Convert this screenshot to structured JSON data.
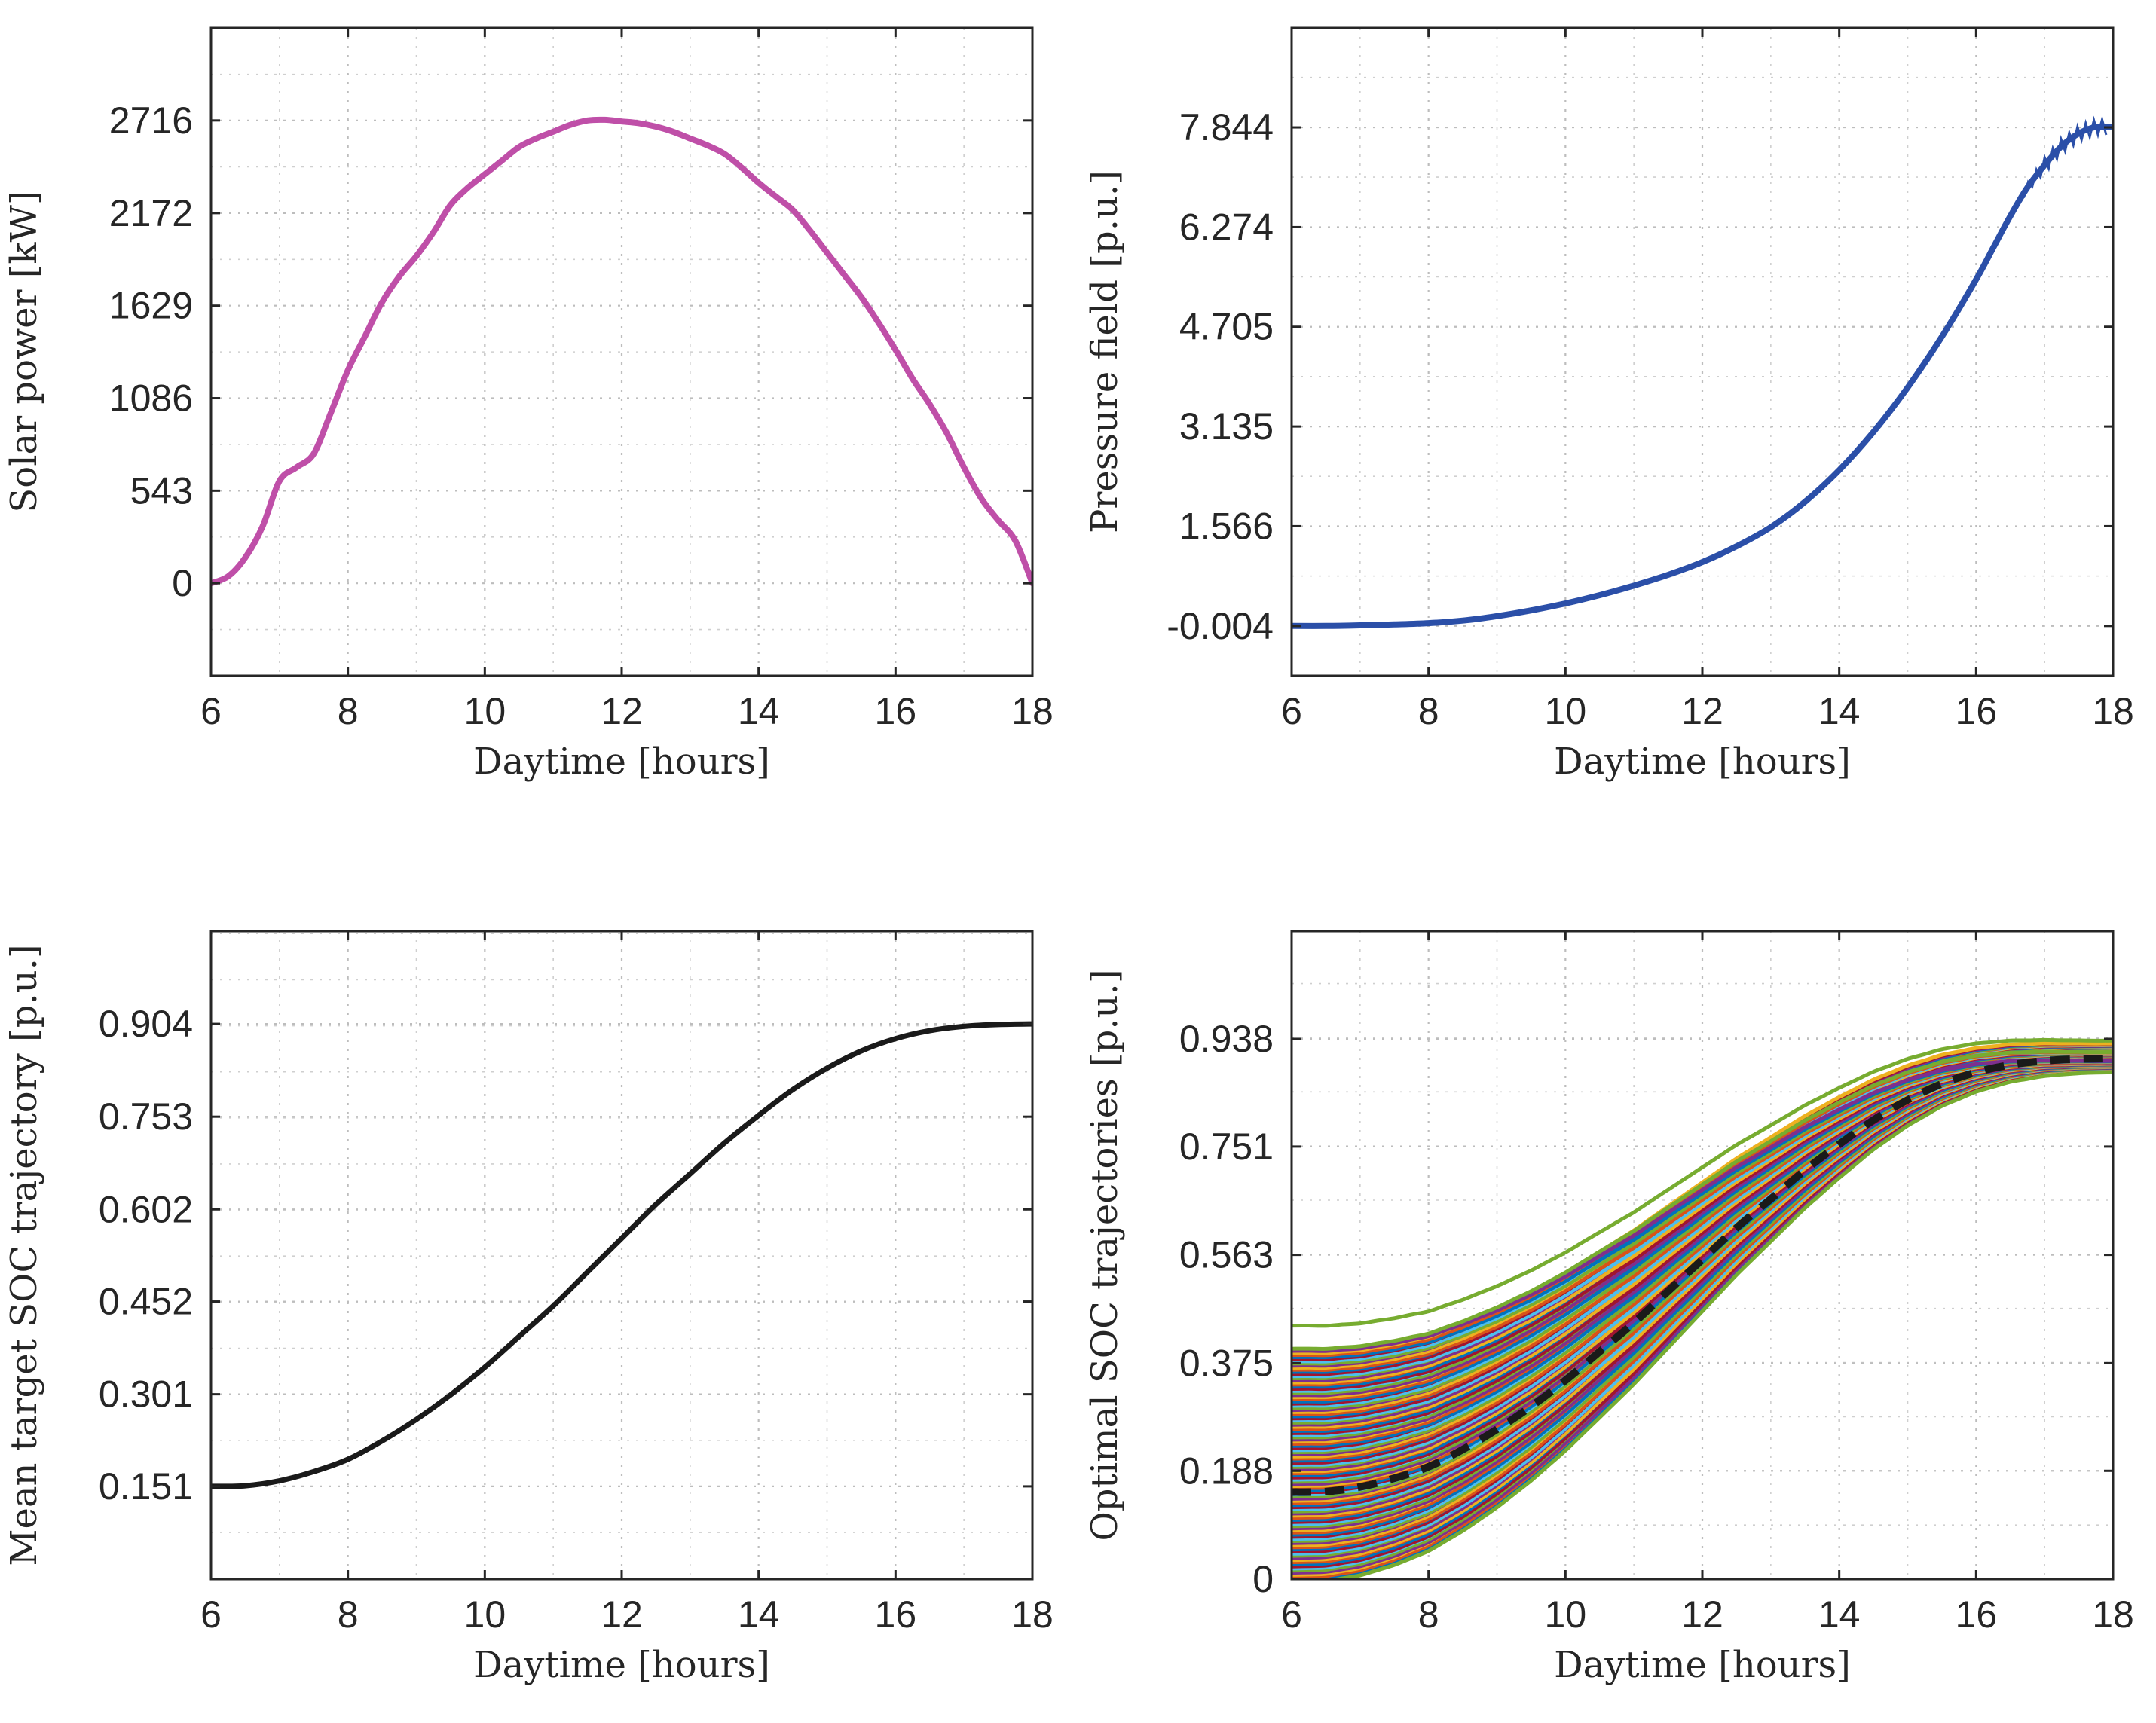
{
  "chart_data": [
    {
      "type": "line",
      "xlabel": "Daytime [hours]",
      "ylabel": "Solar power [kW]",
      "xlim": [
        6,
        18
      ],
      "ylim": [
        -543,
        3259
      ],
      "xticks": [
        6,
        8,
        10,
        12,
        14,
        16,
        18
      ],
      "yticks": [
        0,
        543,
        1086,
        1629,
        2172,
        2716
      ],
      "ytick_labels": [
        "0",
        "543",
        "1086",
        "1629",
        "2172",
        "2716"
      ],
      "grid": true,
      "color": "#bf4fa8",
      "series": [
        {
          "x": [
            6.0,
            6.25,
            6.5,
            6.75,
            7.0,
            7.25,
            7.5,
            7.75,
            8.0,
            8.25,
            8.5,
            8.75,
            9.0,
            9.25,
            9.5,
            9.75,
            10.0,
            10.25,
            10.5,
            10.75,
            11.0,
            11.25,
            11.5,
            11.75,
            12.0,
            12.25,
            12.5,
            12.75,
            13.0,
            13.25,
            13.5,
            13.75,
            14.0,
            14.25,
            14.5,
            14.75,
            15.0,
            15.25,
            15.5,
            15.75,
            16.0,
            16.25,
            16.5,
            16.75,
            17.0,
            17.25,
            17.5,
            17.75,
            18.0
          ],
          "y": [
            0,
            40,
            150,
            330,
            600,
            680,
            760,
            1000,
            1250,
            1450,
            1650,
            1800,
            1920,
            2060,
            2220,
            2320,
            2400,
            2480,
            2560,
            2610,
            2650,
            2690,
            2716,
            2720,
            2710,
            2700,
            2680,
            2650,
            2610,
            2570,
            2520,
            2440,
            2350,
            2270,
            2190,
            2070,
            1940,
            1810,
            1680,
            1530,
            1370,
            1200,
            1050,
            880,
            680,
            500,
            370,
            250,
            0
          ]
        }
      ]
    },
    {
      "type": "line",
      "xlabel": "Daytime [hours]",
      "ylabel": "Pressure field [p.u.]",
      "xlim": [
        6,
        18
      ],
      "ylim": [
        -0.789,
        9.41
      ],
      "xticks": [
        6,
        8,
        10,
        12,
        14,
        16,
        18
      ],
      "yticks": [
        -0.004,
        1.566,
        3.135,
        4.705,
        6.274,
        7.844
      ],
      "ytick_labels": [
        "-0.004",
        "1.566",
        "3.135",
        "4.705",
        "6.274",
        "7.844"
      ],
      "grid": true,
      "color": "#2b4fa8",
      "series": [
        {
          "x": [
            6.0,
            6.5,
            7.0,
            7.5,
            8.0,
            8.5,
            9.0,
            9.5,
            10.0,
            10.5,
            11.0,
            11.5,
            12.0,
            12.5,
            13.0,
            13.5,
            14.0,
            14.5,
            15.0,
            15.5,
            16.0,
            16.25,
            16.5,
            16.75,
            17.0,
            17.25,
            17.5,
            17.75,
            18.0
          ],
          "y": [
            -0.004,
            -0.004,
            0.005,
            0.02,
            0.04,
            0.08,
            0.15,
            0.24,
            0.35,
            0.48,
            0.63,
            0.8,
            1.0,
            1.25,
            1.55,
            1.95,
            2.45,
            3.05,
            3.75,
            4.55,
            5.45,
            5.95,
            6.45,
            6.9,
            7.25,
            7.55,
            7.75,
            7.85,
            7.844
          ]
        }
      ]
    },
    {
      "type": "line",
      "xlabel": "Daytime [hours]",
      "ylabel": "Mean target SOC trajectory [p.u.]",
      "xlim": [
        6,
        18
      ],
      "ylim": [
        0,
        1.055
      ],
      "xticks": [
        6,
        8,
        10,
        12,
        14,
        16,
        18
      ],
      "yticks": [
        0.151,
        0.301,
        0.452,
        0.602,
        0.753,
        0.904
      ],
      "ytick_labels": [
        "0.151",
        "0.301",
        "0.452",
        "0.602",
        "0.753",
        "0.904"
      ],
      "grid": true,
      "color": "#1a1a1a",
      "series": [
        {
          "x": [
            6.0,
            6.5,
            7.0,
            7.5,
            8.0,
            8.5,
            9.0,
            9.5,
            10.0,
            10.5,
            11.0,
            11.5,
            12.0,
            12.5,
            13.0,
            13.5,
            14.0,
            14.5,
            15.0,
            15.5,
            16.0,
            16.5,
            17.0,
            17.5,
            18.0
          ],
          "y": [
            0.151,
            0.152,
            0.16,
            0.175,
            0.195,
            0.225,
            0.26,
            0.3,
            0.345,
            0.395,
            0.445,
            0.5,
            0.555,
            0.61,
            0.66,
            0.71,
            0.755,
            0.797,
            0.832,
            0.86,
            0.88,
            0.893,
            0.9,
            0.903,
            0.904
          ]
        }
      ]
    },
    {
      "type": "line",
      "xlabel": "Daytime [hours]",
      "ylabel": "Optimal SOC trajectories [p.u.]",
      "xlim": [
        6,
        18
      ],
      "ylim": [
        0,
        1.125
      ],
      "xticks": [
        6,
        8,
        10,
        12,
        14,
        16,
        18
      ],
      "yticks": [
        0,
        0.188,
        0.375,
        0.563,
        0.751,
        0.938
      ],
      "ytick_labels": [
        "0",
        "0.188",
        "0.375",
        "0.563",
        "0.751",
        "0.938"
      ],
      "grid": true,
      "ensemble": {
        "count": 110,
        "initial_soc_range": [
          0.0,
          0.4
        ],
        "outlier_initial_soc": 0.44,
        "final_soc_range": [
          0.885,
          0.93
        ],
        "colors": [
          "#0072bd",
          "#d95319",
          "#edb120",
          "#7e2f8e",
          "#77ac30",
          "#4dbeee",
          "#a2142f"
        ]
      },
      "series": [
        {
          "name": "Mean",
          "style": "dashed",
          "color": "#1a1a1a",
          "x": [
            6.0,
            6.5,
            7.0,
            7.5,
            8.0,
            8.5,
            9.0,
            9.5,
            10.0,
            10.5,
            11.0,
            11.5,
            12.0,
            12.5,
            13.0,
            13.5,
            14.0,
            14.5,
            15.0,
            15.5,
            16.0,
            16.5,
            17.0,
            17.5,
            18.0
          ],
          "y": [
            0.151,
            0.152,
            0.16,
            0.175,
            0.195,
            0.225,
            0.26,
            0.3,
            0.345,
            0.395,
            0.445,
            0.5,
            0.555,
            0.61,
            0.66,
            0.71,
            0.755,
            0.797,
            0.832,
            0.86,
            0.88,
            0.893,
            0.9,
            0.903,
            0.904
          ]
        }
      ]
    }
  ]
}
